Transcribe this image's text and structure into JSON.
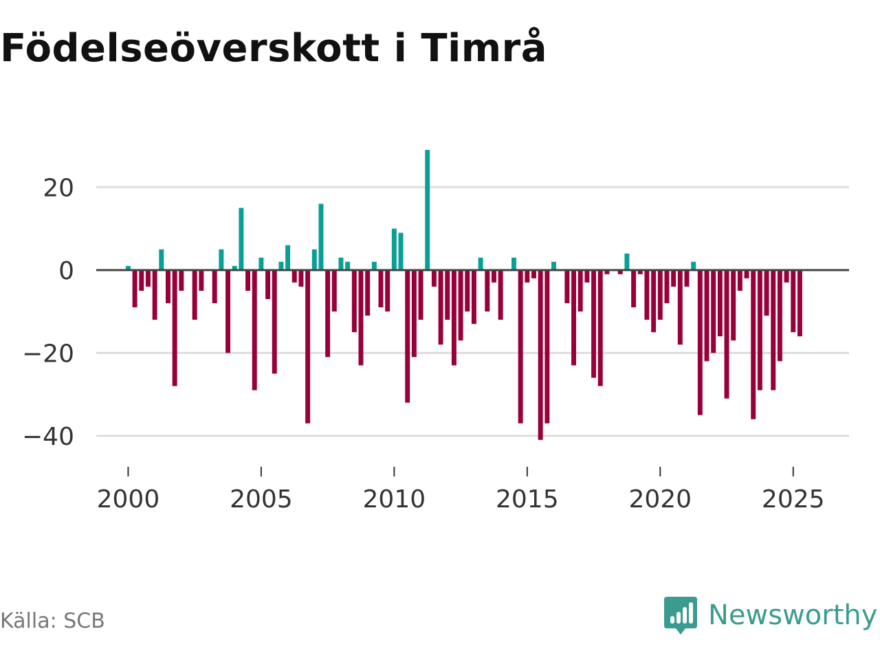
{
  "chart_data": {
    "type": "bar",
    "title": "Födelseöverskott i Timrå",
    "source": "Källa: SCB",
    "brand": "Newsworthy",
    "xlabel": "",
    "ylabel": "",
    "x_start": 2000.0,
    "x_step": 0.25,
    "x_ticks": [
      2000,
      2005,
      2010,
      2015,
      2020,
      2025
    ],
    "x_tick_labels": [
      "2000",
      "2005",
      "2010",
      "2015",
      "2020",
      "2025"
    ],
    "y_ticks": [
      20,
      0,
      -20,
      -40
    ],
    "y_tick_labels": [
      "20",
      "0",
      "−20",
      "−40"
    ],
    "xlim": [
      1998.8,
      2027.1
    ],
    "ylim": [
      -46,
      32
    ],
    "grid": true,
    "colors": {
      "positive": "#0a9f95",
      "negative": "#98003a",
      "grid": "#dddddd",
      "zero": "#444444"
    },
    "values": [
      1,
      -9,
      -5,
      -4,
      -12,
      5,
      -8,
      -28,
      -5,
      0,
      -12,
      -5,
      0,
      -8,
      5,
      -20,
      1,
      15,
      -5,
      -29,
      3,
      -7,
      -25,
      2,
      6,
      -3,
      -4,
      -37,
      5,
      16,
      -21,
      -10,
      3,
      2,
      -15,
      -23,
      -11,
      2,
      -9,
      -10,
      10,
      9,
      -32,
      -21,
      -12,
      29,
      -4,
      -18,
      -12,
      -23,
      -17,
      -10,
      -13,
      3,
      -10,
      -3,
      -12,
      0,
      3,
      -37,
      -3,
      -2,
      -41,
      -37,
      2,
      0,
      -8,
      -23,
      -10,
      -3,
      -26,
      -28,
      -1,
      0,
      -1,
      4,
      -9,
      -1,
      -12,
      -15,
      -12,
      -8,
      -4,
      -18,
      -4,
      2,
      -35,
      -22,
      -20,
      -16,
      -31,
      -17,
      -5,
      -2,
      -36,
      -29,
      -11,
      -29,
      -22,
      -3,
      -15,
      -16
    ]
  }
}
